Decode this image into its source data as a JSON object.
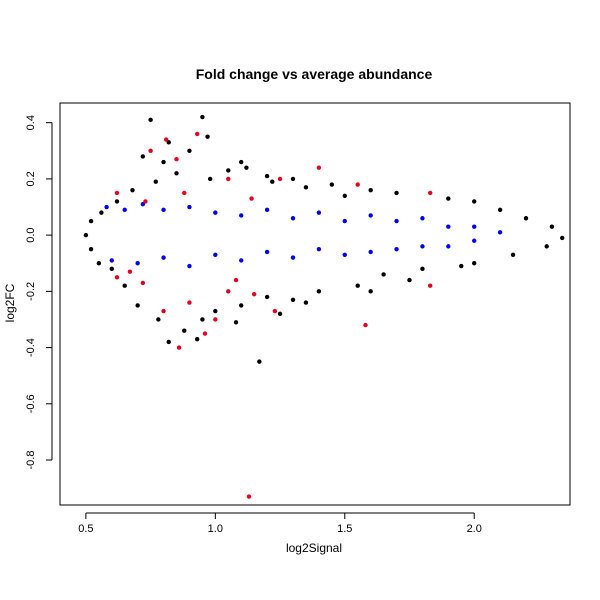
{
  "chart_data": {
    "type": "scatter",
    "title": "Fold change vs average abundance",
    "xlabel": "log2Signal",
    "ylabel": "log2FC",
    "xlim": [
      0.4,
      2.37
    ],
    "ylim": [
      -0.96,
      0.47
    ],
    "xticks": [
      0.5,
      1.0,
      1.5,
      2.0
    ],
    "xtick_labels": [
      "0.5",
      "1.0",
      "1.5",
      "2.0"
    ],
    "yticks": [
      -0.8,
      -0.6,
      -0.4,
      -0.2,
      0.0,
      0.2,
      0.4
    ],
    "ytick_labels": [
      "-0.8",
      "-0.6",
      "-0.4",
      "-0.2",
      "0.0",
      "0.2",
      "0.4"
    ],
    "grid": false,
    "legend": "none",
    "series": [
      {
        "color": "#000000",
        "points": [
          [
            0.75,
            0.41
          ],
          [
            0.95,
            0.42
          ],
          [
            0.97,
            0.35
          ],
          [
            0.82,
            0.33
          ],
          [
            0.72,
            0.28
          ],
          [
            0.9,
            0.3
          ],
          [
            1.1,
            0.26
          ],
          [
            1.12,
            0.24
          ],
          [
            0.85,
            0.22
          ],
          [
            1.2,
            0.21
          ],
          [
            1.05,
            0.23
          ],
          [
            1.3,
            0.2
          ],
          [
            1.45,
            0.18
          ],
          [
            1.6,
            0.16
          ],
          [
            1.7,
            0.15
          ],
          [
            1.9,
            0.13
          ],
          [
            2.0,
            0.12
          ],
          [
            2.1,
            0.09
          ],
          [
            2.2,
            0.06
          ],
          [
            2.3,
            0.03
          ],
          [
            2.34,
            -0.01
          ],
          [
            2.28,
            -0.04
          ],
          [
            2.15,
            -0.07
          ],
          [
            2.0,
            -0.1
          ],
          [
            1.8,
            -0.12
          ],
          [
            1.65,
            -0.14
          ],
          [
            1.55,
            -0.18
          ],
          [
            1.4,
            -0.2
          ],
          [
            1.3,
            -0.23
          ],
          [
            1.2,
            -0.22
          ],
          [
            1.1,
            -0.25
          ],
          [
            1.0,
            -0.27
          ],
          [
            0.95,
            -0.3
          ],
          [
            0.88,
            -0.34
          ],
          [
            0.82,
            -0.38
          ],
          [
            0.78,
            -0.3
          ],
          [
            0.7,
            -0.25
          ],
          [
            0.65,
            -0.18
          ],
          [
            0.6,
            -0.12
          ],
          [
            0.55,
            -0.1
          ],
          [
            0.52,
            -0.05
          ],
          [
            0.5,
            0.0
          ],
          [
            0.52,
            0.05
          ],
          [
            0.56,
            0.08
          ],
          [
            0.62,
            0.12
          ],
          [
            0.68,
            0.16
          ],
          [
            1.17,
            -0.45
          ],
          [
            0.93,
            -0.37
          ],
          [
            1.08,
            -0.31
          ],
          [
            1.25,
            -0.28
          ],
          [
            1.35,
            -0.24
          ],
          [
            1.6,
            -0.2
          ],
          [
            1.75,
            -0.16
          ],
          [
            1.95,
            -0.11
          ],
          [
            1.5,
            0.14
          ],
          [
            1.35,
            0.17
          ],
          [
            1.22,
            0.19
          ],
          [
            0.98,
            0.2
          ],
          [
            0.8,
            0.26
          ],
          [
            0.77,
            0.19
          ]
        ]
      },
      {
        "color": "#0000ff",
        "points": [
          [
            0.58,
            0.1
          ],
          [
            0.65,
            0.09
          ],
          [
            0.72,
            0.11
          ],
          [
            0.8,
            0.09
          ],
          [
            0.9,
            0.1
          ],
          [
            1.0,
            0.08
          ],
          [
            1.1,
            0.07
          ],
          [
            1.2,
            0.09
          ],
          [
            1.3,
            0.06
          ],
          [
            1.4,
            0.08
          ],
          [
            1.5,
            0.05
          ],
          [
            1.6,
            0.07
          ],
          [
            1.7,
            0.05
          ],
          [
            1.8,
            0.06
          ],
          [
            1.9,
            0.03
          ],
          [
            2.0,
            0.03
          ],
          [
            2.1,
            0.01
          ],
          [
            0.6,
            -0.09
          ],
          [
            0.7,
            -0.1
          ],
          [
            0.8,
            -0.08
          ],
          [
            0.9,
            -0.11
          ],
          [
            1.0,
            -0.07
          ],
          [
            1.1,
            -0.09
          ],
          [
            1.2,
            -0.06
          ],
          [
            1.3,
            -0.08
          ],
          [
            1.4,
            -0.05
          ],
          [
            1.5,
            -0.07
          ],
          [
            1.6,
            -0.06
          ],
          [
            1.7,
            -0.05
          ],
          [
            1.8,
            -0.04
          ],
          [
            1.9,
            -0.04
          ],
          [
            2.0,
            -0.02
          ]
        ]
      },
      {
        "color": "#e8001c",
        "points": [
          [
            0.75,
            0.3
          ],
          [
            0.81,
            0.34
          ],
          [
            0.93,
            0.36
          ],
          [
            0.85,
            0.27
          ],
          [
            1.4,
            0.24
          ],
          [
            1.05,
            0.2
          ],
          [
            1.25,
            0.2
          ],
          [
            1.55,
            0.18
          ],
          [
            1.83,
            0.15
          ],
          [
            0.73,
            0.12
          ],
          [
            0.88,
            0.15
          ],
          [
            1.14,
            0.13
          ],
          [
            0.62,
            0.15
          ],
          [
            0.62,
            -0.15
          ],
          [
            0.72,
            -0.17
          ],
          [
            0.8,
            -0.27
          ],
          [
            0.86,
            -0.4
          ],
          [
            0.96,
            -0.35
          ],
          [
            1.0,
            -0.3
          ],
          [
            1.05,
            -0.2
          ],
          [
            1.15,
            -0.21
          ],
          [
            1.23,
            -0.27
          ],
          [
            1.58,
            -0.32
          ],
          [
            1.83,
            -0.18
          ],
          [
            1.13,
            -0.93
          ],
          [
            0.9,
            -0.24
          ],
          [
            1.08,
            -0.16
          ],
          [
            0.67,
            -0.13
          ]
        ]
      }
    ]
  }
}
